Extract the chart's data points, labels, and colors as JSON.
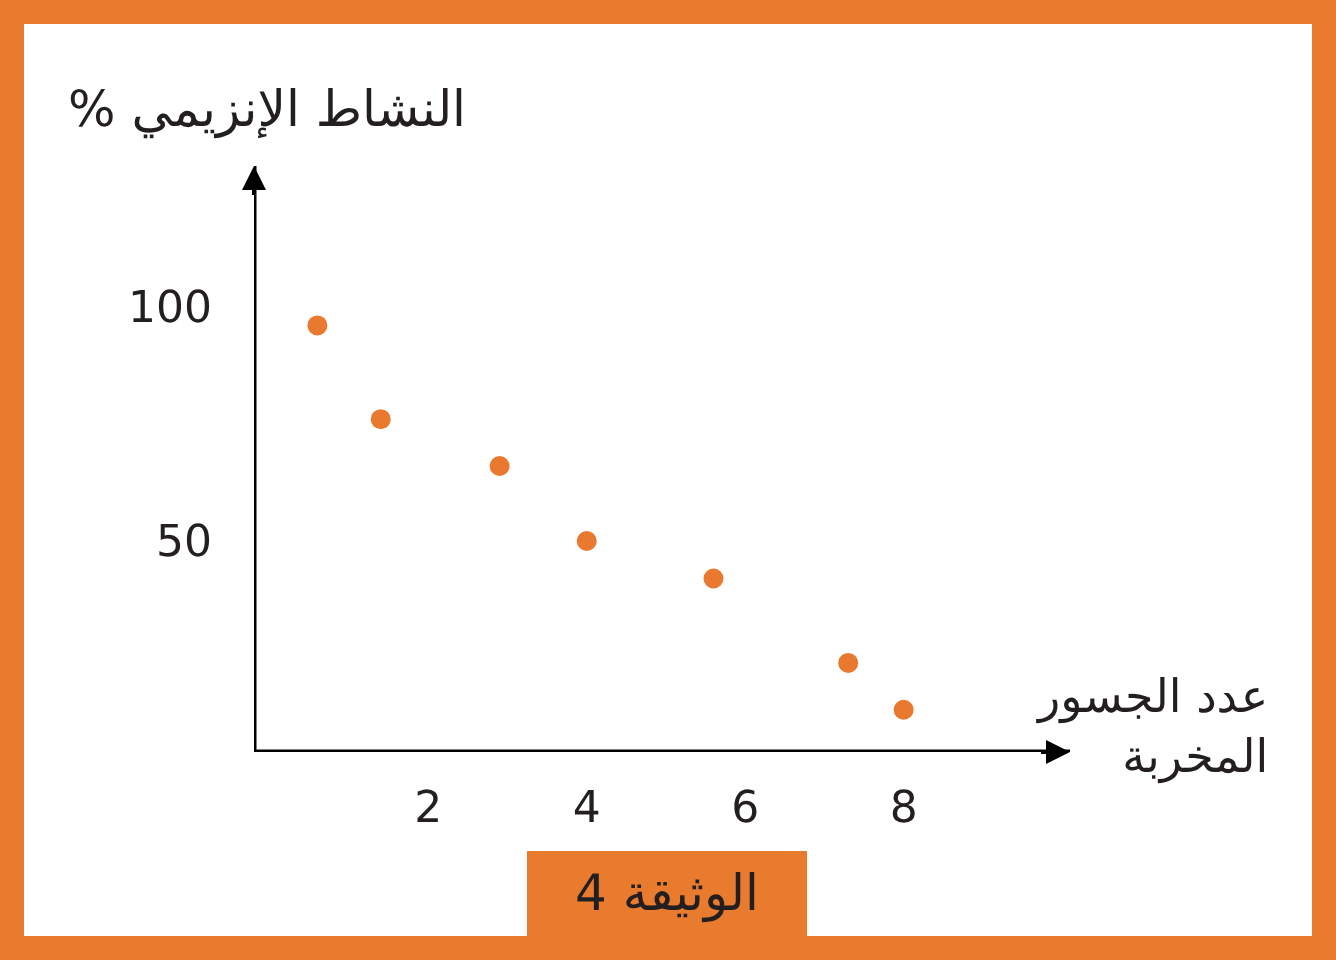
{
  "chart_data": {
    "type": "scatter",
    "xlabel": "عدد الجسور المخربة",
    "ylabel": "% النشاط الإنزيمي",
    "x": [
      0.6,
      1.4,
      2.9,
      4.0,
      5.6,
      7.3,
      8.0
    ],
    "values": [
      96,
      76,
      66,
      50,
      42,
      24,
      14
    ],
    "color": "#e8792f",
    "marker": "circle",
    "xlim": [
      -0.2,
      10.1
    ],
    "ylim": [
      5,
      130
    ],
    "xticks": [
      2,
      4,
      6,
      8
    ],
    "yticks": [
      50,
      100
    ],
    "annotations": [
      "الوثيقة 4"
    ]
  }
}
